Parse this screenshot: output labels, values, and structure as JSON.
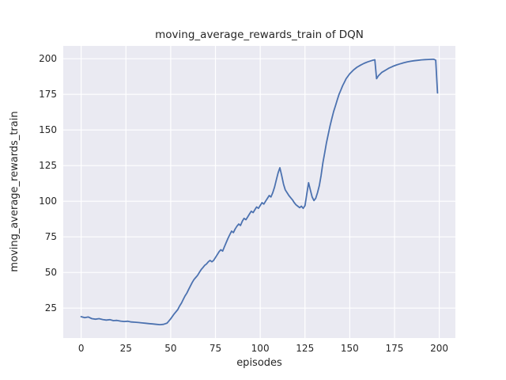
{
  "chart_data": {
    "type": "line",
    "title": "moving_average_rewards_train of DQN",
    "xlabel": "episodes",
    "ylabel": "moving_average_rewards_train",
    "xlim": [
      -10,
      209
    ],
    "ylim": [
      4,
      209
    ],
    "xticks": [
      0,
      25,
      50,
      75,
      100,
      125,
      150,
      175,
      200
    ],
    "yticks": [
      25,
      50,
      75,
      100,
      125,
      150,
      175,
      200
    ],
    "grid": true,
    "legend": false,
    "style": {
      "plot_bg": "#eaeaf2",
      "grid_color": "#ffffff",
      "line_color": "#4c72b0",
      "text_color": "#262626",
      "figure_bg": "#ffffff"
    },
    "series": [
      {
        "name": "moving_average_rewards_train",
        "x": [
          0,
          2,
          4,
          6,
          8,
          10,
          12,
          14,
          16,
          18,
          20,
          22,
          24,
          26,
          28,
          30,
          32,
          34,
          36,
          38,
          40,
          42,
          44,
          46,
          48,
          50,
          52,
          54,
          55,
          56,
          57,
          58,
          59,
          60,
          61,
          62,
          63,
          64,
          65,
          66,
          67,
          68,
          69,
          70,
          71,
          72,
          73,
          74,
          75,
          76,
          77,
          78,
          79,
          80,
          81,
          82,
          83,
          84,
          85,
          86,
          87,
          88,
          89,
          90,
          91,
          92,
          93,
          94,
          95,
          96,
          97,
          98,
          99,
          100,
          101,
          102,
          103,
          104,
          105,
          106,
          107,
          108,
          109,
          110,
          111,
          112,
          113,
          114,
          115,
          116,
          117,
          118,
          119,
          120,
          121,
          122,
          123,
          124,
          125,
          126,
          127,
          128,
          129,
          130,
          131,
          132,
          133,
          134,
          135,
          136,
          137,
          138,
          139,
          140,
          141,
          142,
          143,
          144,
          145,
          146,
          147,
          148,
          150,
          152,
          154,
          156,
          158,
          160,
          162,
          163,
          164,
          165,
          166,
          168,
          170,
          172,
          174,
          176,
          178,
          180,
          182,
          184,
          186,
          188,
          190,
          192,
          194,
          196,
          197,
          198,
          199
        ],
        "y": [
          19,
          18.3,
          18.8,
          17.6,
          17.2,
          17.6,
          17.0,
          16.6,
          16.9,
          16.2,
          16.4,
          15.9,
          15.6,
          15.8,
          15.3,
          15.1,
          14.9,
          14.6,
          14.4,
          14.1,
          13.9,
          13.6,
          13.4,
          13.6,
          14.5,
          17.5,
          21,
          24,
          26.5,
          28.5,
          31,
          33.5,
          35.5,
          38,
          40.5,
          43,
          45,
          46.5,
          48,
          50,
          52,
          53.5,
          55,
          56,
          57.5,
          58.5,
          57.5,
          58.5,
          60.5,
          62.5,
          64.5,
          66,
          65,
          68,
          71,
          74,
          76.5,
          79,
          78,
          80.5,
          82.5,
          84,
          83,
          86,
          88,
          87,
          89,
          91,
          93,
          92,
          94,
          96,
          95,
          97,
          99,
          98,
          100,
          102,
          104,
          103,
          106,
          110,
          115,
          120,
          123.5,
          118,
          112,
          108,
          106,
          104,
          102.5,
          101,
          99,
          97.5,
          96.5,
          95.5,
          96.5,
          95,
          97,
          105,
          113,
          108,
          103,
          100.5,
          102,
          106,
          111,
          118,
          127,
          134,
          141,
          147,
          153,
          158,
          163,
          167,
          171,
          175,
          178,
          181,
          183.5,
          186,
          189.5,
          192,
          194,
          195.5,
          196.8,
          197.8,
          198.6,
          199,
          199.3,
          186,
          188,
          190.5,
          192,
          193.5,
          194.6,
          195.6,
          196.4,
          197.1,
          197.7,
          198.2,
          198.6,
          198.9,
          199.2,
          199.4,
          199.5,
          199.6,
          199.6,
          199.0,
          176
        ]
      }
    ]
  }
}
